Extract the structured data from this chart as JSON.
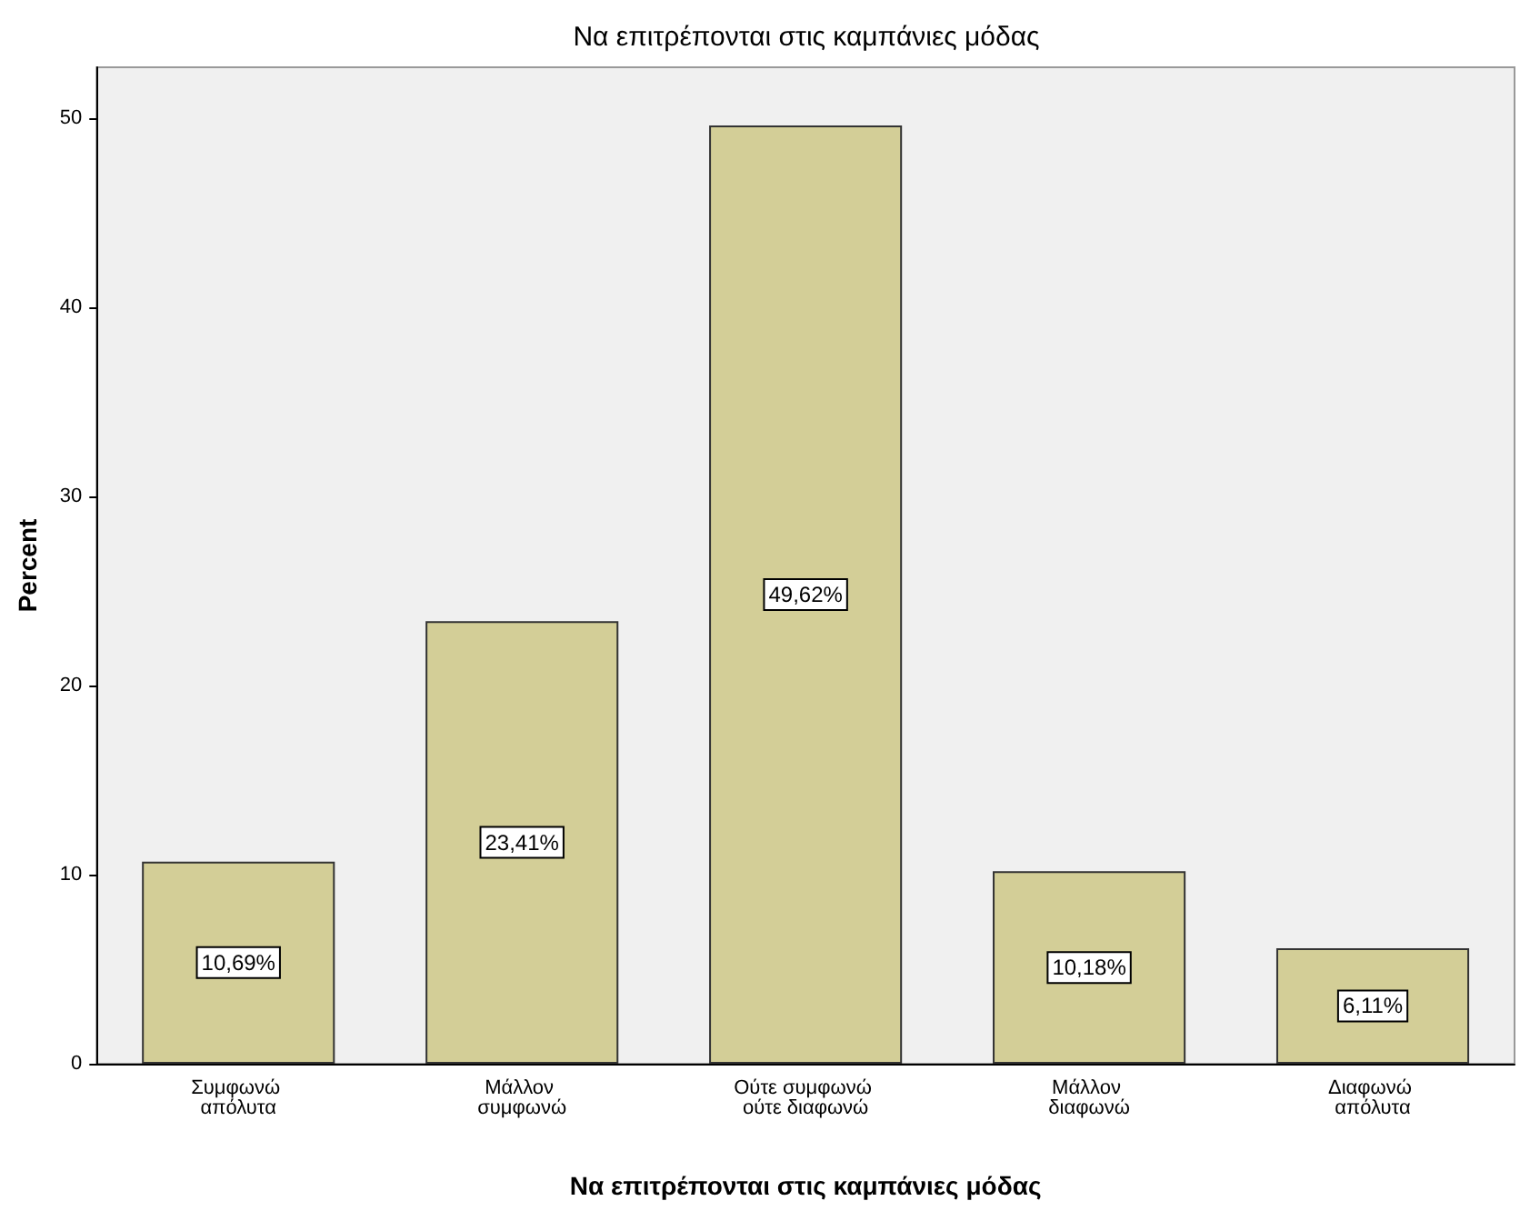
{
  "chart_data": {
    "type": "bar",
    "title": "Να επιτρέπονται στις καμπάνιες μόδας",
    "xlabel": "Να επιτρέπονται στις καμπάνιες μόδας",
    "ylabel": "Percent",
    "categories": [
      "Συμφωνώ απόλυτα",
      "Μάλλον συμφωνώ",
      "Ούτε συμφωνώ ούτε διαφωνώ",
      "Μάλλον διαφωνώ",
      "Διαφωνώ απόλυτα"
    ],
    "series": [
      {
        "color": "#d3ce97",
        "values": [
          10.69,
          23.41,
          49.62,
          10.18,
          6.11
        ],
        "value_labels": [
          "10,69%",
          "23,41%",
          "49,62%",
          "10,18%",
          "6,11%"
        ]
      }
    ],
    "ylim": [
      0,
      52.7
    ],
    "yticks": [
      0,
      10,
      20,
      30,
      40,
      50
    ],
    "grid": false
  }
}
